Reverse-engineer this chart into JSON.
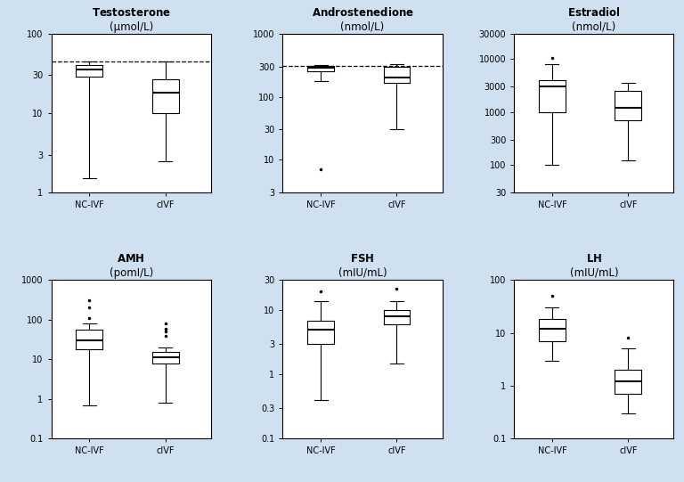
{
  "background_color": "#cfe0f0",
  "panel_bg": "#ffffff",
  "subplots": [
    {
      "title": "Testosterone",
      "subtitle": "(μmol/L)",
      "ylim_log": [
        1,
        100
      ],
      "yticks": [
        1,
        3,
        10,
        30,
        100
      ],
      "ytick_labels": [
        "1",
        "3",
        "10",
        "30",
        "100"
      ],
      "nc_ivf": {
        "median": 35,
        "q1": 29,
        "q3": 40,
        "whislo": 1.5,
        "whishi": 45,
        "fliers": []
      },
      "civf": {
        "median": 18,
        "q1": 10,
        "q3": 27,
        "whislo": 2.5,
        "whishi": 45,
        "fliers": []
      },
      "dashed_line": 45
    },
    {
      "title": "Androstenedione",
      "subtitle": "(nmol/L)",
      "ylim_log": [
        3,
        1000
      ],
      "yticks": [
        3,
        10,
        30,
        100,
        300,
        1000
      ],
      "ytick_labels": [
        "3",
        "10",
        "30",
        "100",
        "300",
        "1000"
      ],
      "nc_ivf": {
        "median": 290,
        "q1": 255,
        "q3": 310,
        "whislo": 175,
        "whishi": 320,
        "fliers": [
          7
        ]
      },
      "civf": {
        "median": 200,
        "q1": 165,
        "q3": 295,
        "whislo": 30,
        "whishi": 330,
        "fliers": []
      },
      "dashed_line": 305
    },
    {
      "title": "Estradiol",
      "subtitle": "(nmol/L)",
      "ylim_log": [
        30,
        30000
      ],
      "yticks": [
        30,
        100,
        300,
        1000,
        3000,
        10000,
        30000
      ],
      "ytick_labels": [
        "30",
        "100",
        "300",
        "1000",
        "3000",
        "10000",
        "30000"
      ],
      "nc_ivf": {
        "median": 3000,
        "q1": 1000,
        "q3": 4000,
        "whislo": 100,
        "whishi": 8000,
        "fliers": [
          10500
        ]
      },
      "civf": {
        "median": 1200,
        "q1": 700,
        "q3": 2500,
        "whislo": 120,
        "whishi": 3500,
        "fliers": []
      },
      "dashed_line": null
    },
    {
      "title": "AMH",
      "subtitle": "(pomI/L)",
      "ylim_log": [
        0.1,
        1000
      ],
      "yticks": [
        0.1,
        1,
        10,
        100,
        1000
      ],
      "ytick_labels": [
        "0.1",
        "1",
        "10",
        "100",
        "1000"
      ],
      "nc_ivf": {
        "median": 30,
        "q1": 18,
        "q3": 55,
        "whislo": 0.7,
        "whishi": 80,
        "fliers": [
          200,
          300,
          110
        ]
      },
      "civf": {
        "median": 11,
        "q1": 8,
        "q3": 15,
        "whislo": 0.8,
        "whishi": 20,
        "fliers": [
          50,
          60,
          80,
          38
        ]
      },
      "dashed_line": null
    },
    {
      "title": "FSH",
      "subtitle": "(mIU/mL)",
      "ylim_log": [
        0.1,
        30
      ],
      "yticks": [
        0.1,
        0.3,
        1,
        3,
        10,
        30
      ],
      "ytick_labels": [
        "0.1",
        "0.3",
        "1",
        "3",
        "10",
        "30"
      ],
      "nc_ivf": {
        "median": 5,
        "q1": 3,
        "q3": 7,
        "whislo": 0.4,
        "whishi": 14,
        "fliers": [
          20
        ]
      },
      "civf": {
        "median": 8,
        "q1": 6,
        "q3": 10,
        "whislo": 1.5,
        "whishi": 14,
        "fliers": [
          22
        ]
      },
      "dashed_line": null
    },
    {
      "title": "LH",
      "subtitle": "(mIU/mL)",
      "ylim_log": [
        0.1,
        100
      ],
      "yticks": [
        0.1,
        1,
        10,
        100
      ],
      "ytick_labels": [
        "0.1",
        "1",
        "10",
        "100"
      ],
      "nc_ivf": {
        "median": 12,
        "q1": 7,
        "q3": 18,
        "whislo": 3,
        "whishi": 30,
        "fliers": [
          50
        ]
      },
      "civf": {
        "median": 1.2,
        "q1": 0.7,
        "q3": 2,
        "whislo": 0.3,
        "whishi": 5,
        "fliers": [
          8
        ]
      },
      "dashed_line": null
    }
  ]
}
